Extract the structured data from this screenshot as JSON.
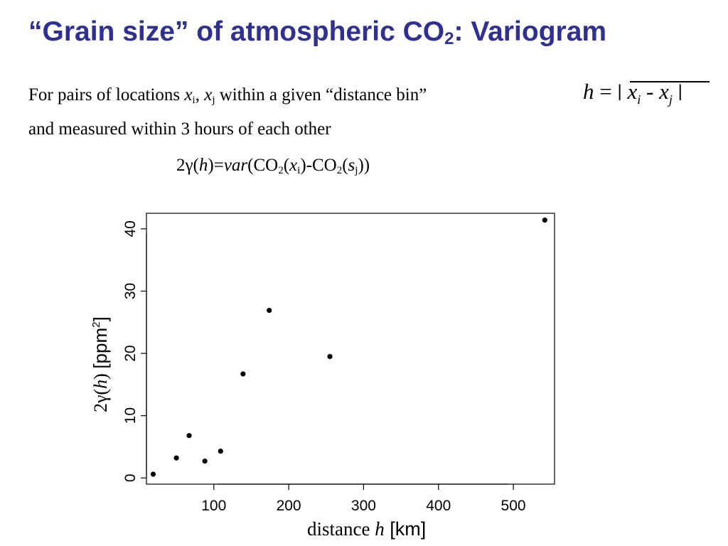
{
  "slide": {
    "title_main": "“Grain size” of atmospheric CO",
    "title_sub": "2",
    "title_end": ": Variogram"
  },
  "text": {
    "line1_a": "For pairs of locations ",
    "x": "x",
    "i": "i",
    "j": "j",
    "comma": ", ",
    "line1_b": " within a given “distance bin”",
    "line2": "and measured within 3 hours of each other"
  },
  "formula_h": {
    "h": "h",
    "eq": " = ",
    "bar": "|",
    "x": "x",
    "i": "i",
    "minus": " - ",
    "j": "j"
  },
  "formula_var": {
    "a": "2γ(",
    "h": "h",
    "b": ")=",
    "var": "var",
    "c": "(CO",
    "sub2a": "2",
    "d": "(",
    "x": "x",
    "i": "i",
    "e": ")-CO",
    "sub2b": "2",
    "f": "(",
    "s": "s",
    "j": "j",
    "g": "))"
  },
  "chart_data": {
    "type": "scatter",
    "xlabel": "distance h [km]",
    "ylabel": "2γ(h) [ppm²]",
    "xlim": [
      10,
      555
    ],
    "ylim": [
      -1,
      42.5
    ],
    "xticks": [
      100,
      200,
      300,
      400,
      500
    ],
    "yticks": [
      0,
      10,
      20,
      30,
      40
    ],
    "grid": false,
    "points": [
      {
        "x": 19,
        "y": 0.6
      },
      {
        "x": 50,
        "y": 3.2
      },
      {
        "x": 67,
        "y": 6.8
      },
      {
        "x": 88,
        "y": 2.7
      },
      {
        "x": 109,
        "y": 4.3
      },
      {
        "x": 139,
        "y": 16.7
      },
      {
        "x": 174,
        "y": 26.9
      },
      {
        "x": 255,
        "y": 19.5
      },
      {
        "x": 542,
        "y": 41.4
      }
    ]
  },
  "axis_labels": {
    "y_a": "2γ(",
    "y_h": "h",
    "y_b": ") ",
    "y_unit": "[ppm",
    "y_sup": "2",
    "y_close": "]",
    "x_a": "distance ",
    "x_h": "h",
    "x_unit": " [km]"
  }
}
